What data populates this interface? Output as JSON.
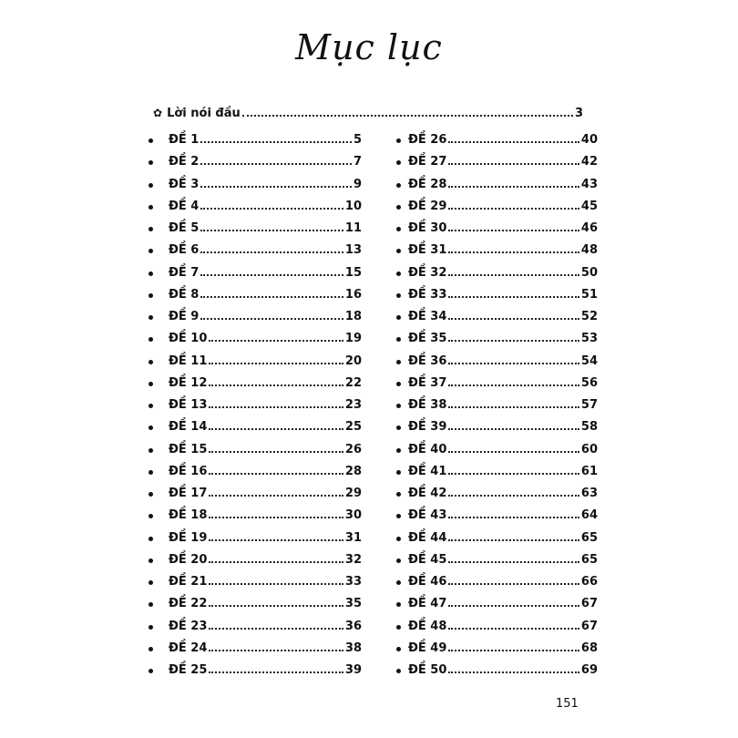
{
  "title": "Mục lục",
  "preface": {
    "icon": "flower-icon",
    "symbol": "✿",
    "label": "Lời nói đầu",
    "page": "3"
  },
  "left_column": [
    {
      "label": "ĐỀ 1",
      "page": "5"
    },
    {
      "label": "ĐỀ 2",
      "page": "7"
    },
    {
      "label": "ĐỀ 3",
      "page": "9"
    },
    {
      "label": "ĐỀ 4",
      "page": "10"
    },
    {
      "label": "ĐỀ 5",
      "page": "11"
    },
    {
      "label": "ĐỀ 6",
      "page": "13"
    },
    {
      "label": "ĐỀ 7",
      "page": "15"
    },
    {
      "label": "ĐỀ 8",
      "page": "16"
    },
    {
      "label": "ĐỀ 9",
      "page": "18"
    },
    {
      "label": "ĐỀ 10",
      "page": "19"
    },
    {
      "label": "ĐỀ 11",
      "page": "20"
    },
    {
      "label": "ĐỀ 12",
      "page": "22"
    },
    {
      "label": "ĐỀ 13",
      "page": "23"
    },
    {
      "label": "ĐỀ 14",
      "page": "25"
    },
    {
      "label": "ĐỀ 15",
      "page": "26"
    },
    {
      "label": "ĐỀ 16",
      "page": "28"
    },
    {
      "label": "ĐỀ 17",
      "page": "29"
    },
    {
      "label": "ĐỀ 18",
      "page": "30"
    },
    {
      "label": "ĐỀ 19",
      "page": "31"
    },
    {
      "label": "ĐỀ 20",
      "page": "32"
    },
    {
      "label": "ĐỀ 21",
      "page": "33"
    },
    {
      "label": "ĐỀ 22",
      "page": "35"
    },
    {
      "label": "ĐỀ 23",
      "page": "36"
    },
    {
      "label": "ĐỀ 24",
      "page": "38"
    },
    {
      "label": "ĐỀ 25",
      "page": "39"
    }
  ],
  "right_column": [
    {
      "label": "ĐỀ 26",
      "page": "40"
    },
    {
      "label": "ĐỀ 27",
      "page": "42"
    },
    {
      "label": "ĐỀ 28",
      "page": "43"
    },
    {
      "label": "ĐỀ 29",
      "page": "45"
    },
    {
      "label": "ĐỀ 30",
      "page": "46"
    },
    {
      "label": "ĐỀ 31",
      "page": "48"
    },
    {
      "label": "ĐỀ 32",
      "page": "50"
    },
    {
      "label": "ĐỀ 33",
      "page": "51"
    },
    {
      "label": "ĐỀ 34",
      "page": "52"
    },
    {
      "label": "ĐỀ 35",
      "page": "53"
    },
    {
      "label": "ĐỀ 36",
      "page": "54"
    },
    {
      "label": "ĐỀ 37",
      "page": "56"
    },
    {
      "label": "ĐỀ 38",
      "page": "57"
    },
    {
      "label": "ĐỀ 39",
      "page": "58"
    },
    {
      "label": "ĐỀ 40",
      "page": "60"
    },
    {
      "label": "ĐỀ 41",
      "page": "61"
    },
    {
      "label": "ĐỀ 42",
      "page": "63"
    },
    {
      "label": "ĐỀ 43",
      "page": "64"
    },
    {
      "label": "ĐỀ 44",
      "page": "65"
    },
    {
      "label": "ĐỀ 45",
      "page": "65"
    },
    {
      "label": "ĐỀ 46",
      "page": "66"
    },
    {
      "label": "ĐỀ 47",
      "page": "67"
    },
    {
      "label": "ĐỀ 48",
      "page": "67"
    },
    {
      "label": "ĐỀ 49",
      "page": "68"
    },
    {
      "label": "ĐỀ 50",
      "page": "69"
    }
  ],
  "page_number": "151"
}
